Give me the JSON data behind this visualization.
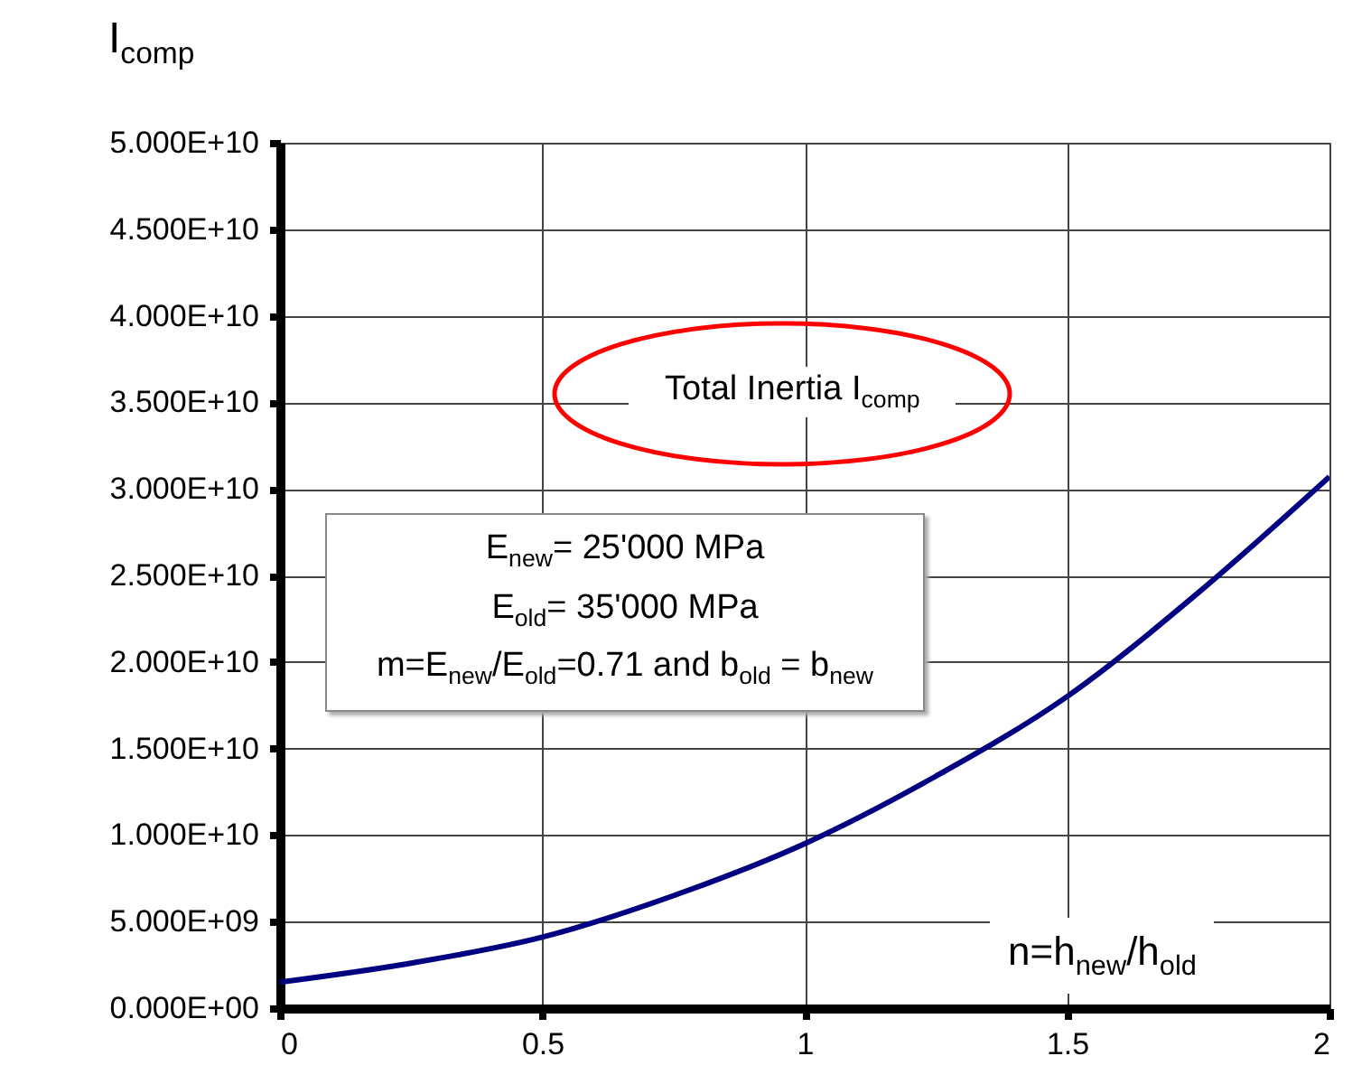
{
  "chart_data": {
    "type": "line",
    "ylabel": "I$_{comp}$",
    "xlabel": "n=h$_{new}$/h$_{old}$",
    "x": [
      0,
      0.25,
      0.5,
      0.75,
      1,
      1.25,
      1.5,
      1.75,
      2
    ],
    "series": [
      {
        "color": "#000080",
        "values": [
          1500000000.0,
          2600000000.0,
          4100000000.0,
          6500000000.0,
          9500000000.0,
          13400000000.0,
          18000000000.0,
          24000000000.0,
          30700000000.0
        ]
      }
    ],
    "xlim": [
      0,
      2
    ],
    "xticks": [
      0,
      0.5,
      1,
      1.5,
      2
    ],
    "ylim": [
      0,
      50000000000.0
    ],
    "yticks": [
      {
        "value": 0,
        "label": "0.000E+00"
      },
      {
        "value": 5000000000.0,
        "label": "5.000E+09"
      },
      {
        "value": 10000000000.0,
        "label": "1.000E+10"
      },
      {
        "value": 15000000000.0,
        "label": "1.500E+10"
      },
      {
        "value": 20000000000.0,
        "label": "2.000E+10"
      },
      {
        "value": 25000000000.0,
        "label": "2.500E+10"
      },
      {
        "value": 30000000000.0,
        "label": "3.000E+10"
      },
      {
        "value": 35000000000.0,
        "label": "3.500E+10"
      },
      {
        "value": 40000000000.0,
        "label": "4.000E+10"
      },
      {
        "value": 45000000000.0,
        "label": "4.500E+10"
      },
      {
        "value": 50000000000.0,
        "label": "5.000E+10"
      }
    ],
    "grid": true,
    "marker": "none",
    "line_style": "solid",
    "annotations": [
      "Total Inertia I$_{comp}$",
      "E$_{new}$= 25'000 MPa",
      "E$_{old}$= 35'000 MPa",
      "m=E$_{new}$/E$_{old}$=0.71 and b$_{old}$ = b$_{new}$"
    ]
  }
}
